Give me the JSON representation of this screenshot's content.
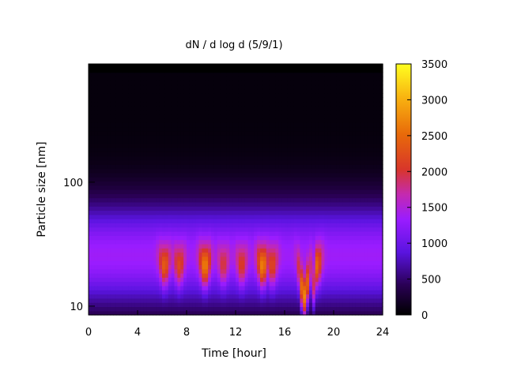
{
  "chart_data": {
    "type": "heatmap",
    "title": "dN / d log d (5/9/1)",
    "xlabel": "Time [hour]",
    "ylabel": "Particle size [nm]",
    "xlim": [
      0,
      24
    ],
    "x_ticks": [
      0,
      4,
      8,
      12,
      16,
      20,
      24
    ],
    "x_tick_labels": [
      "0",
      "4",
      "8",
      "12",
      "16",
      "20",
      "24"
    ],
    "y_scale": "log",
    "ylim": [
      8.5,
      900
    ],
    "y_ticks": [
      10,
      100
    ],
    "y_tick_labels": [
      "10",
      "100"
    ],
    "colorbar": {
      "palette": "black-blue-purple-red-orange-yellow",
      "min": 0,
      "max": 3500,
      "ticks": [
        0,
        500,
        1000,
        1500,
        2000,
        2500,
        3000,
        3500
      ],
      "tick_labels": [
        "0",
        "500",
        "1000",
        "1500",
        "2000",
        "2500",
        "3000",
        "3500"
      ]
    },
    "mode_diameter_nm": 26,
    "events": [
      {
        "hour": 6.2,
        "peak": 2500
      },
      {
        "hour": 7.4,
        "peak": 2300
      },
      {
        "hour": 9.5,
        "peak": 2800
      },
      {
        "hour": 11.0,
        "peak": 2100
      },
      {
        "hour": 12.5,
        "peak": 2200
      },
      {
        "hour": 14.2,
        "peak": 2800
      },
      {
        "hour": 15.0,
        "peak": 2300
      },
      {
        "hour": 17.6,
        "peak": 3400
      },
      {
        "hour": 18.6,
        "peak": 2600
      }
    ]
  }
}
